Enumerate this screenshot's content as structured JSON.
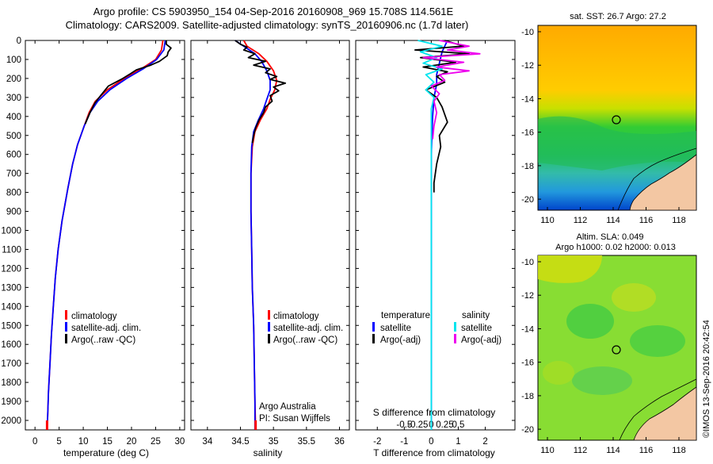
{
  "title": {
    "line1": "Argo profile: CS 5903950_154 04-Sep-2016 20160908_969 15.708S 114.561E",
    "line2": "Climatology: CARS2009. Satellite-adjusted climatology: synTS_20160906.nc (1.7d later)"
  },
  "colors": {
    "climatology": "#ff0000",
    "satellite": "#0000ff",
    "argo": "#000000",
    "sat_salinity": "#00e5ee",
    "argo_salinity": "#ee00ee"
  },
  "panels": {
    "temperature": {
      "xlabel": "temperature (deg C)",
      "legend": [
        "climatology",
        "satellite-adj. clim.",
        "Argo(..raw -QC)"
      ]
    },
    "salinity": {
      "xlabel": "salinity",
      "legend": [
        "climatology",
        "satellite-adj. clim.",
        "Argo(..raw -QC)"
      ],
      "credit1": "Argo Australia",
      "credit2": "PI: Susan Wijffels"
    },
    "difference": {
      "xlabel_bottom": "T difference from climatology",
      "xlabel_top": "S difference from climatology",
      "legend_t_title": "temperature",
      "legend_t": [
        "satellite",
        "Argo(-adj)"
      ],
      "legend_s_title": "salinity",
      "legend_s": [
        "satellite",
        "Argo(-adj)"
      ]
    }
  },
  "maps": {
    "sst_title": "sat. SST: 26.7 Argo: 27.2",
    "sla_title1": "Altim. SLA: 0.049",
    "sla_title2": "Argo h1000: 0.02 h2000: 0.013",
    "lat_ticks": [
      "-10",
      "-12",
      "-14",
      "-16",
      "-18",
      "-20"
    ],
    "lon_ticks": [
      "110",
      "112",
      "114",
      "116",
      "118"
    ]
  },
  "timestamp": "©IMOS 13-Sep-2016 20:42:54",
  "chart_data": [
    {
      "type": "line",
      "name": "temperature profile",
      "xlabel": "temperature (deg C)",
      "ylabel": "",
      "xlim": [
        -2,
        31
      ],
      "ylim": [
        2050,
        0
      ],
      "xticks": [
        0,
        5,
        10,
        15,
        20,
        25,
        30
      ],
      "yticks": [
        0,
        100,
        200,
        300,
        400,
        500,
        600,
        700,
        800,
        900,
        1000,
        1100,
        1200,
        1300,
        1400,
        1500,
        1600,
        1700,
        1800,
        1900,
        2000
      ],
      "series": [
        {
          "name": "climatology",
          "color": "#ff0000",
          "points": [
            [
              26.5,
              0
            ],
            [
              26.2,
              50
            ],
            [
              25,
              100
            ],
            [
              22,
              150
            ],
            [
              18.5,
              200
            ],
            [
              15,
              260
            ],
            [
              12.5,
              320
            ],
            [
              11.2,
              380
            ],
            [
              10.2,
              450
            ],
            [
              8.8,
              550
            ],
            [
              7.8,
              650
            ],
            [
              6.8,
              780
            ],
            [
              5.6,
              950
            ],
            [
              4.8,
              1100
            ],
            [
              4.2,
              1250
            ],
            [
              3.8,
              1400
            ],
            [
              3.4,
              1550
            ],
            [
              3.1,
              1700
            ],
            [
              2.8,
              1850
            ],
            [
              2.6,
              2000
            ],
            [
              2.5,
              2050
            ]
          ]
        },
        {
          "name": "satellite-adj. clim.",
          "color": "#0000ff",
          "points": [
            [
              27,
              0
            ],
            [
              26.7,
              50
            ],
            [
              25.2,
              100
            ],
            [
              22.4,
              150
            ],
            [
              19,
              200
            ],
            [
              15.5,
              260
            ],
            [
              13,
              320
            ],
            [
              11.4,
              380
            ],
            [
              10.2,
              450
            ],
            [
              8.8,
              550
            ],
            [
              7.8,
              650
            ],
            [
              6.8,
              780
            ],
            [
              5.6,
              950
            ],
            [
              4.8,
              1100
            ],
            [
              4.2,
              1250
            ],
            [
              3.8,
              1400
            ],
            [
              3.4,
              1550
            ],
            [
              3.1,
              1700
            ],
            [
              2.8,
              1850
            ],
            [
              2.6,
              2000
            ],
            [
              2.5,
              2050
            ]
          ]
        },
        {
          "name": "Argo(..raw -QC)",
          "color": "#000000",
          "points": [
            [
              27.2,
              0
            ],
            [
              27.2,
              20
            ],
            [
              28.2,
              40
            ],
            [
              27.6,
              60
            ],
            [
              27.4,
              80
            ],
            [
              25.8,
              110
            ],
            [
              24,
              130
            ],
            [
              21,
              155
            ],
            [
              19.8,
              175
            ],
            [
              18.2,
              200
            ],
            [
              15.2,
              240
            ],
            [
              13.6,
              290
            ],
            [
              12.4,
              330
            ],
            [
              11.4,
              380
            ],
            [
              10.4,
              440
            ]
          ]
        }
      ]
    },
    {
      "type": "line",
      "name": "salinity profile",
      "xlabel": "salinity",
      "ylabel": "",
      "xlim": [
        33.75,
        36.15
      ],
      "ylim": [
        2050,
        0
      ],
      "xticks": [
        34,
        34.5,
        35,
        35.5,
        36
      ],
      "series": [
        {
          "name": "climatology",
          "color": "#ff0000",
          "points": [
            [
              34.55,
              0
            ],
            [
              34.6,
              30
            ],
            [
              34.78,
              70
            ],
            [
              34.9,
              110
            ],
            [
              35.0,
              160
            ],
            [
              35.05,
              210
            ],
            [
              35.02,
              260
            ],
            [
              34.95,
              310
            ],
            [
              34.9,
              360
            ],
            [
              34.8,
              420
            ],
            [
              34.72,
              480
            ],
            [
              34.68,
              560
            ],
            [
              34.66,
              700
            ],
            [
              34.66,
              900
            ],
            [
              34.67,
              1100
            ],
            [
              34.68,
              1300
            ],
            [
              34.7,
              1500
            ],
            [
              34.71,
              1700
            ],
            [
              34.72,
              1900
            ],
            [
              34.73,
              2050
            ]
          ]
        },
        {
          "name": "satellite-adj. clim.",
          "color": "#0000ff",
          "points": [
            [
              34.42,
              0
            ],
            [
              34.55,
              30
            ],
            [
              34.72,
              70
            ],
            [
              34.82,
              110
            ],
            [
              34.9,
              160
            ],
            [
              34.95,
              210
            ],
            [
              34.95,
              260
            ],
            [
              34.9,
              310
            ],
            [
              34.85,
              360
            ],
            [
              34.77,
              420
            ],
            [
              34.7,
              480
            ],
            [
              34.67,
              560
            ],
            [
              34.66,
              700
            ],
            [
              34.66,
              900
            ],
            [
              34.67,
              1100
            ],
            [
              34.68,
              1300
            ],
            [
              34.7,
              1500
            ],
            [
              34.71,
              1700
            ],
            [
              34.72,
              1900
            ],
            [
              34.72,
              2050
            ]
          ]
        },
        {
          "name": "Argo(..raw -QC)",
          "color": "#000000",
          "points": [
            [
              34.42,
              0
            ],
            [
              34.5,
              20
            ],
            [
              34.6,
              35
            ],
            [
              34.55,
              50
            ],
            [
              34.72,
              70
            ],
            [
              34.62,
              90
            ],
            [
              34.88,
              110
            ],
            [
              34.7,
              130
            ],
            [
              34.95,
              150
            ],
            [
              34.88,
              170
            ],
            [
              35.05,
              190
            ],
            [
              34.95,
              205
            ],
            [
              35.18,
              225
            ],
            [
              35.0,
              245
            ],
            [
              35.08,
              265
            ],
            [
              34.95,
              290
            ],
            [
              34.98,
              320
            ],
            [
              34.88,
              350
            ],
            [
              34.85,
              380
            ],
            [
              34.78,
              420
            ],
            [
              34.73,
              460
            ],
            [
              34.7,
              500
            ],
            [
              34.68,
              540
            ]
          ]
        }
      ]
    },
    {
      "type": "line",
      "name": "difference from climatology",
      "xlabel": "T difference from climatology",
      "x2label": "S difference from climatology",
      "ylabel": "",
      "xlim": [
        -2.8,
        3.1
      ],
      "ylim": [
        2050,
        0
      ],
      "xticks": [
        -2,
        -1,
        0,
        1,
        2
      ],
      "x2ticks": [
        "-0.5",
        "-0.25",
        "0",
        "0.25",
        "0.5"
      ],
      "series": [
        {
          "name": "temperature satellite",
          "color": "#0000ff",
          "points": [
            [
              0.6,
              0
            ],
            [
              0.4,
              60
            ],
            [
              0.3,
              120
            ],
            [
              0.2,
              180
            ],
            [
              0.2,
              230
            ],
            [
              0.1,
              300
            ],
            [
              0.05,
              400
            ],
            [
              0,
              600
            ],
            [
              0,
              900
            ],
            [
              0,
              1500
            ],
            [
              0,
              2050
            ]
          ]
        },
        {
          "name": "temperature Argo(-adj)",
          "color": "#000000",
          "points": [
            [
              0.5,
              0
            ],
            [
              1.2,
              30
            ],
            [
              -0.6,
              50
            ],
            [
              1.4,
              70
            ],
            [
              -0.4,
              90
            ],
            [
              0.9,
              115
            ],
            [
              -0.3,
              140
            ],
            [
              0.6,
              165
            ],
            [
              0.2,
              190
            ],
            [
              0.5,
              220
            ],
            [
              -0.2,
              260
            ],
            [
              0.2,
              300
            ],
            [
              0.4,
              350
            ],
            [
              0.6,
              430
            ],
            [
              0.3,
              500
            ],
            [
              0.35,
              560
            ],
            [
              0.2,
              650
            ],
            [
              0.1,
              750
            ],
            [
              0.1,
              800
            ]
          ]
        },
        {
          "name": "salinity satellite",
          "color": "#00e5ee",
          "points": [
            [
              -0.5,
              0
            ],
            [
              0.4,
              30
            ],
            [
              -0.4,
              60
            ],
            [
              0.2,
              90
            ],
            [
              -0.3,
              120
            ],
            [
              0.4,
              150
            ],
            [
              -0.2,
              180
            ],
            [
              0.1,
              220
            ],
            [
              -0.2,
              260
            ],
            [
              0.1,
              300
            ],
            [
              0,
              360
            ],
            [
              0,
              500
            ],
            [
              0,
              800
            ],
            [
              0,
              1200
            ],
            [
              0,
              1600
            ],
            [
              0,
              2050
            ]
          ]
        },
        {
          "name": "salinity Argo(-adj)",
          "color": "#ee00ee",
          "points": [
            [
              0.3,
              0
            ],
            [
              1.4,
              30
            ],
            [
              0.6,
              50
            ],
            [
              1.8,
              70
            ],
            [
              -0.3,
              90
            ],
            [
              1.2,
              115
            ],
            [
              0.2,
              140
            ],
            [
              1.4,
              160
            ],
            [
              0.3,
              180
            ],
            [
              0.5,
              210
            ],
            [
              0,
              240
            ],
            [
              0.3,
              280
            ],
            [
              0.1,
              320
            ],
            [
              0.2,
              380
            ],
            [
              0.1,
              450
            ],
            [
              0.05,
              520
            ]
          ]
        }
      ]
    }
  ]
}
